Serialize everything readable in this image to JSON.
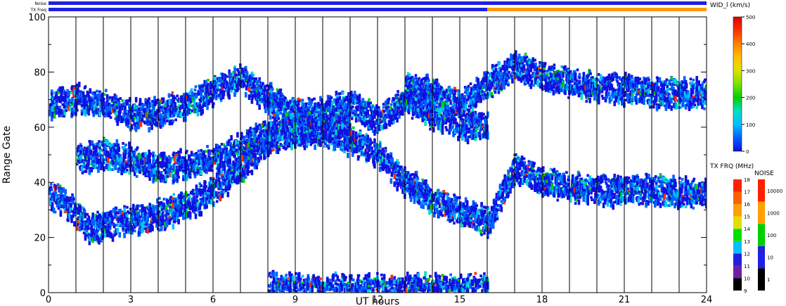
{
  "chart_data": {
    "type": "heatmap",
    "xlabel": "UT hours",
    "ylabel": "Range Gate",
    "xlim": [
      0,
      24
    ],
    "ylim": [
      0,
      100
    ],
    "x_ticks": [
      0,
      3,
      6,
      9,
      12,
      15,
      18,
      21,
      24
    ],
    "x_minor_step": 1,
    "y_ticks": [
      0,
      20,
      40,
      60,
      80,
      100
    ],
    "y_minor_step": 10,
    "grid": "vertical lines every hour",
    "status_bars": {
      "noise_label": "Noise",
      "txfreq_label": "TX Freq",
      "noise_color": "#2020e0",
      "txfreq_segments": [
        {
          "start": 0,
          "end": 16,
          "color": "#2020e0"
        },
        {
          "start": 16,
          "end": 24,
          "color": "#ff9900"
        }
      ]
    },
    "colorbar_main": {
      "label": "WID_l (km/s)",
      "range": [
        0,
        500
      ],
      "ticks": [
        0,
        100,
        200,
        300,
        400,
        500
      ],
      "colors": [
        "#1010e0",
        "#0060ff",
        "#00c0ff",
        "#00e0c0",
        "#00d000",
        "#80e000",
        "#e0e000",
        "#ffc000",
        "#ff8000",
        "#ff3000",
        "#e00000"
      ]
    },
    "colorbar_txfreq": {
      "label": "TX FRQ (MHz)",
      "ticks": [
        "9",
        "10",
        "11",
        "12",
        "13",
        "14",
        "15",
        "16",
        "17",
        "18"
      ],
      "colors": [
        "#000000",
        "#7020a0",
        "#2020e0",
        "#00c0ff",
        "#00e000",
        "#e0e000",
        "#ffa000",
        "#ff6000",
        "#ff2000"
      ]
    },
    "colorbar_noise": {
      "label": "NOISE",
      "ticks": [
        "1",
        "10",
        "100",
        "1000",
        "10000"
      ],
      "colors": [
        "#000000",
        "#2020e0",
        "#00d000",
        "#ffa000",
        "#ff2000"
      ]
    },
    "series": [
      {
        "points": [
          [
            0,
            35
          ],
          [
            0.5,
            33
          ],
          [
            1,
            28
          ],
          [
            1.5,
            23
          ],
          [
            2,
            24
          ],
          [
            3,
            26
          ],
          [
            4,
            28
          ],
          [
            5,
            31
          ],
          [
            6,
            37
          ],
          [
            7,
            45
          ],
          [
            8,
            55
          ],
          [
            9,
            58
          ],
          [
            10,
            58
          ],
          [
            11,
            55
          ],
          [
            12,
            50
          ],
          [
            13,
            40
          ],
          [
            14,
            33
          ],
          [
            15,
            29
          ],
          [
            16,
            25
          ],
          [
            17,
            45
          ],
          [
            18,
            40
          ],
          [
            19,
            38
          ],
          [
            20,
            37
          ],
          [
            21,
            37
          ],
          [
            22,
            37
          ],
          [
            23,
            36
          ],
          [
            24,
            36
          ]
        ]
      },
      {
        "points": [
          [
            0,
            68
          ],
          [
            1,
            70
          ],
          [
            2,
            68
          ],
          [
            3,
            64
          ],
          [
            4,
            65
          ],
          [
            5,
            68
          ],
          [
            6,
            73
          ],
          [
            7,
            78
          ],
          [
            8,
            70
          ],
          [
            9,
            65
          ],
          [
            10,
            65
          ],
          [
            11,
            68
          ],
          [
            12,
            62
          ],
          [
            13,
            70
          ],
          [
            14,
            64
          ],
          [
            15,
            61
          ],
          [
            16,
            60
          ]
        ]
      },
      {
        "points": [
          [
            1,
            48
          ],
          [
            2,
            50
          ],
          [
            3,
            48
          ],
          [
            4,
            45
          ],
          [
            5,
            46
          ],
          [
            6,
            48
          ],
          [
            7,
            52
          ],
          [
            8,
            58
          ],
          [
            9,
            60
          ],
          [
            10,
            60
          ],
          [
            11,
            60
          ]
        ]
      },
      {
        "points": [
          [
            13,
            75
          ],
          [
            14,
            72
          ],
          [
            15,
            68
          ],
          [
            17,
            82
          ],
          [
            18,
            78
          ],
          [
            19,
            76
          ],
          [
            20,
            74
          ],
          [
            21,
            74
          ],
          [
            22,
            72
          ],
          [
            23,
            72
          ],
          [
            24,
            72
          ]
        ]
      },
      {
        "points": [
          [
            8,
            2
          ],
          [
            9,
            1
          ],
          [
            10,
            1
          ],
          [
            11,
            1
          ],
          [
            12,
            1
          ],
          [
            13,
            1
          ],
          [
            14,
            1
          ],
          [
            15,
            1
          ],
          [
            16,
            1
          ]
        ]
      }
    ]
  }
}
